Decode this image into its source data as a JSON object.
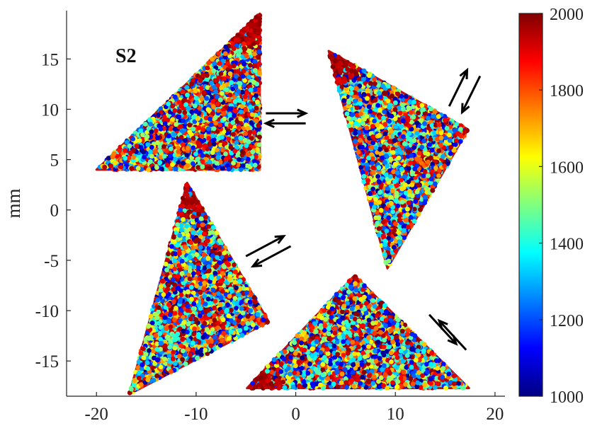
{
  "chart_data": {
    "type": "scatter",
    "title": "",
    "panel_label": "S2",
    "xlabel": "",
    "ylabel": "mm",
    "xlim": [
      -23,
      21
    ],
    "ylim": [
      -18.5,
      19.8
    ],
    "x_ticks": [
      -20,
      -10,
      0,
      10,
      20
    ],
    "y_ticks": [
      -15,
      -10,
      -5,
      0,
      5,
      10,
      15
    ],
    "grid": false,
    "colormap": "jet",
    "colorbar": {
      "min": 1000,
      "max": 2000,
      "ticks": [
        1000,
        1200,
        1400,
        1600,
        1800,
        2000
      ]
    },
    "series": [
      {
        "vertices": [
          [
            -20.0,
            4.0
          ],
          [
            -3.6,
            4.0
          ],
          [
            -3.6,
            19.5
          ]
        ],
        "dense_vertex": [
          -3.6,
          19.5
        ],
        "arrows": [
          [
            [
              -3.0,
              9.6
            ],
            [
              1.0,
              9.6
            ]
          ],
          [
            [
              1.0,
              8.6
            ],
            [
              -3.0,
              8.6
            ]
          ]
        ]
      },
      {
        "vertices": [
          [
            3.3,
            15.8
          ],
          [
            17.3,
            8.0
          ],
          [
            9.2,
            -5.8
          ]
        ],
        "dense_vertex": [
          3.3,
          15.8
        ],
        "arrows": [
          [
            [
              15.4,
              10.3
            ],
            [
              17.2,
              13.9
            ]
          ],
          [
            [
              18.5,
              13.3
            ],
            [
              16.7,
              9.7
            ]
          ]
        ]
      },
      {
        "vertices": [
          [
            -10.9,
            2.7
          ],
          [
            -2.7,
            -11.1
          ],
          [
            -16.7,
            -18.3
          ]
        ],
        "dense_vertex": [
          -10.9,
          2.7
        ],
        "arrows": [
          [
            [
              -5.0,
              -4.6
            ],
            [
              -1.2,
              -2.6
            ]
          ],
          [
            [
              -0.5,
              -3.6
            ],
            [
              -4.3,
              -5.6
            ]
          ]
        ]
      },
      {
        "vertices": [
          [
            -4.9,
            -17.7
          ],
          [
            5.9,
            -6.5
          ],
          [
            17.4,
            -17.7
          ]
        ],
        "dense_vertex": [
          -4.9,
          -17.7
        ],
        "arrows": [
          [
            [
              13.4,
              -10.4
            ],
            [
              16.1,
              -13.3
            ]
          ],
          [
            [
              17.1,
              -13.9
            ],
            [
              14.4,
              -11.0
            ]
          ]
        ]
      }
    ]
  }
}
